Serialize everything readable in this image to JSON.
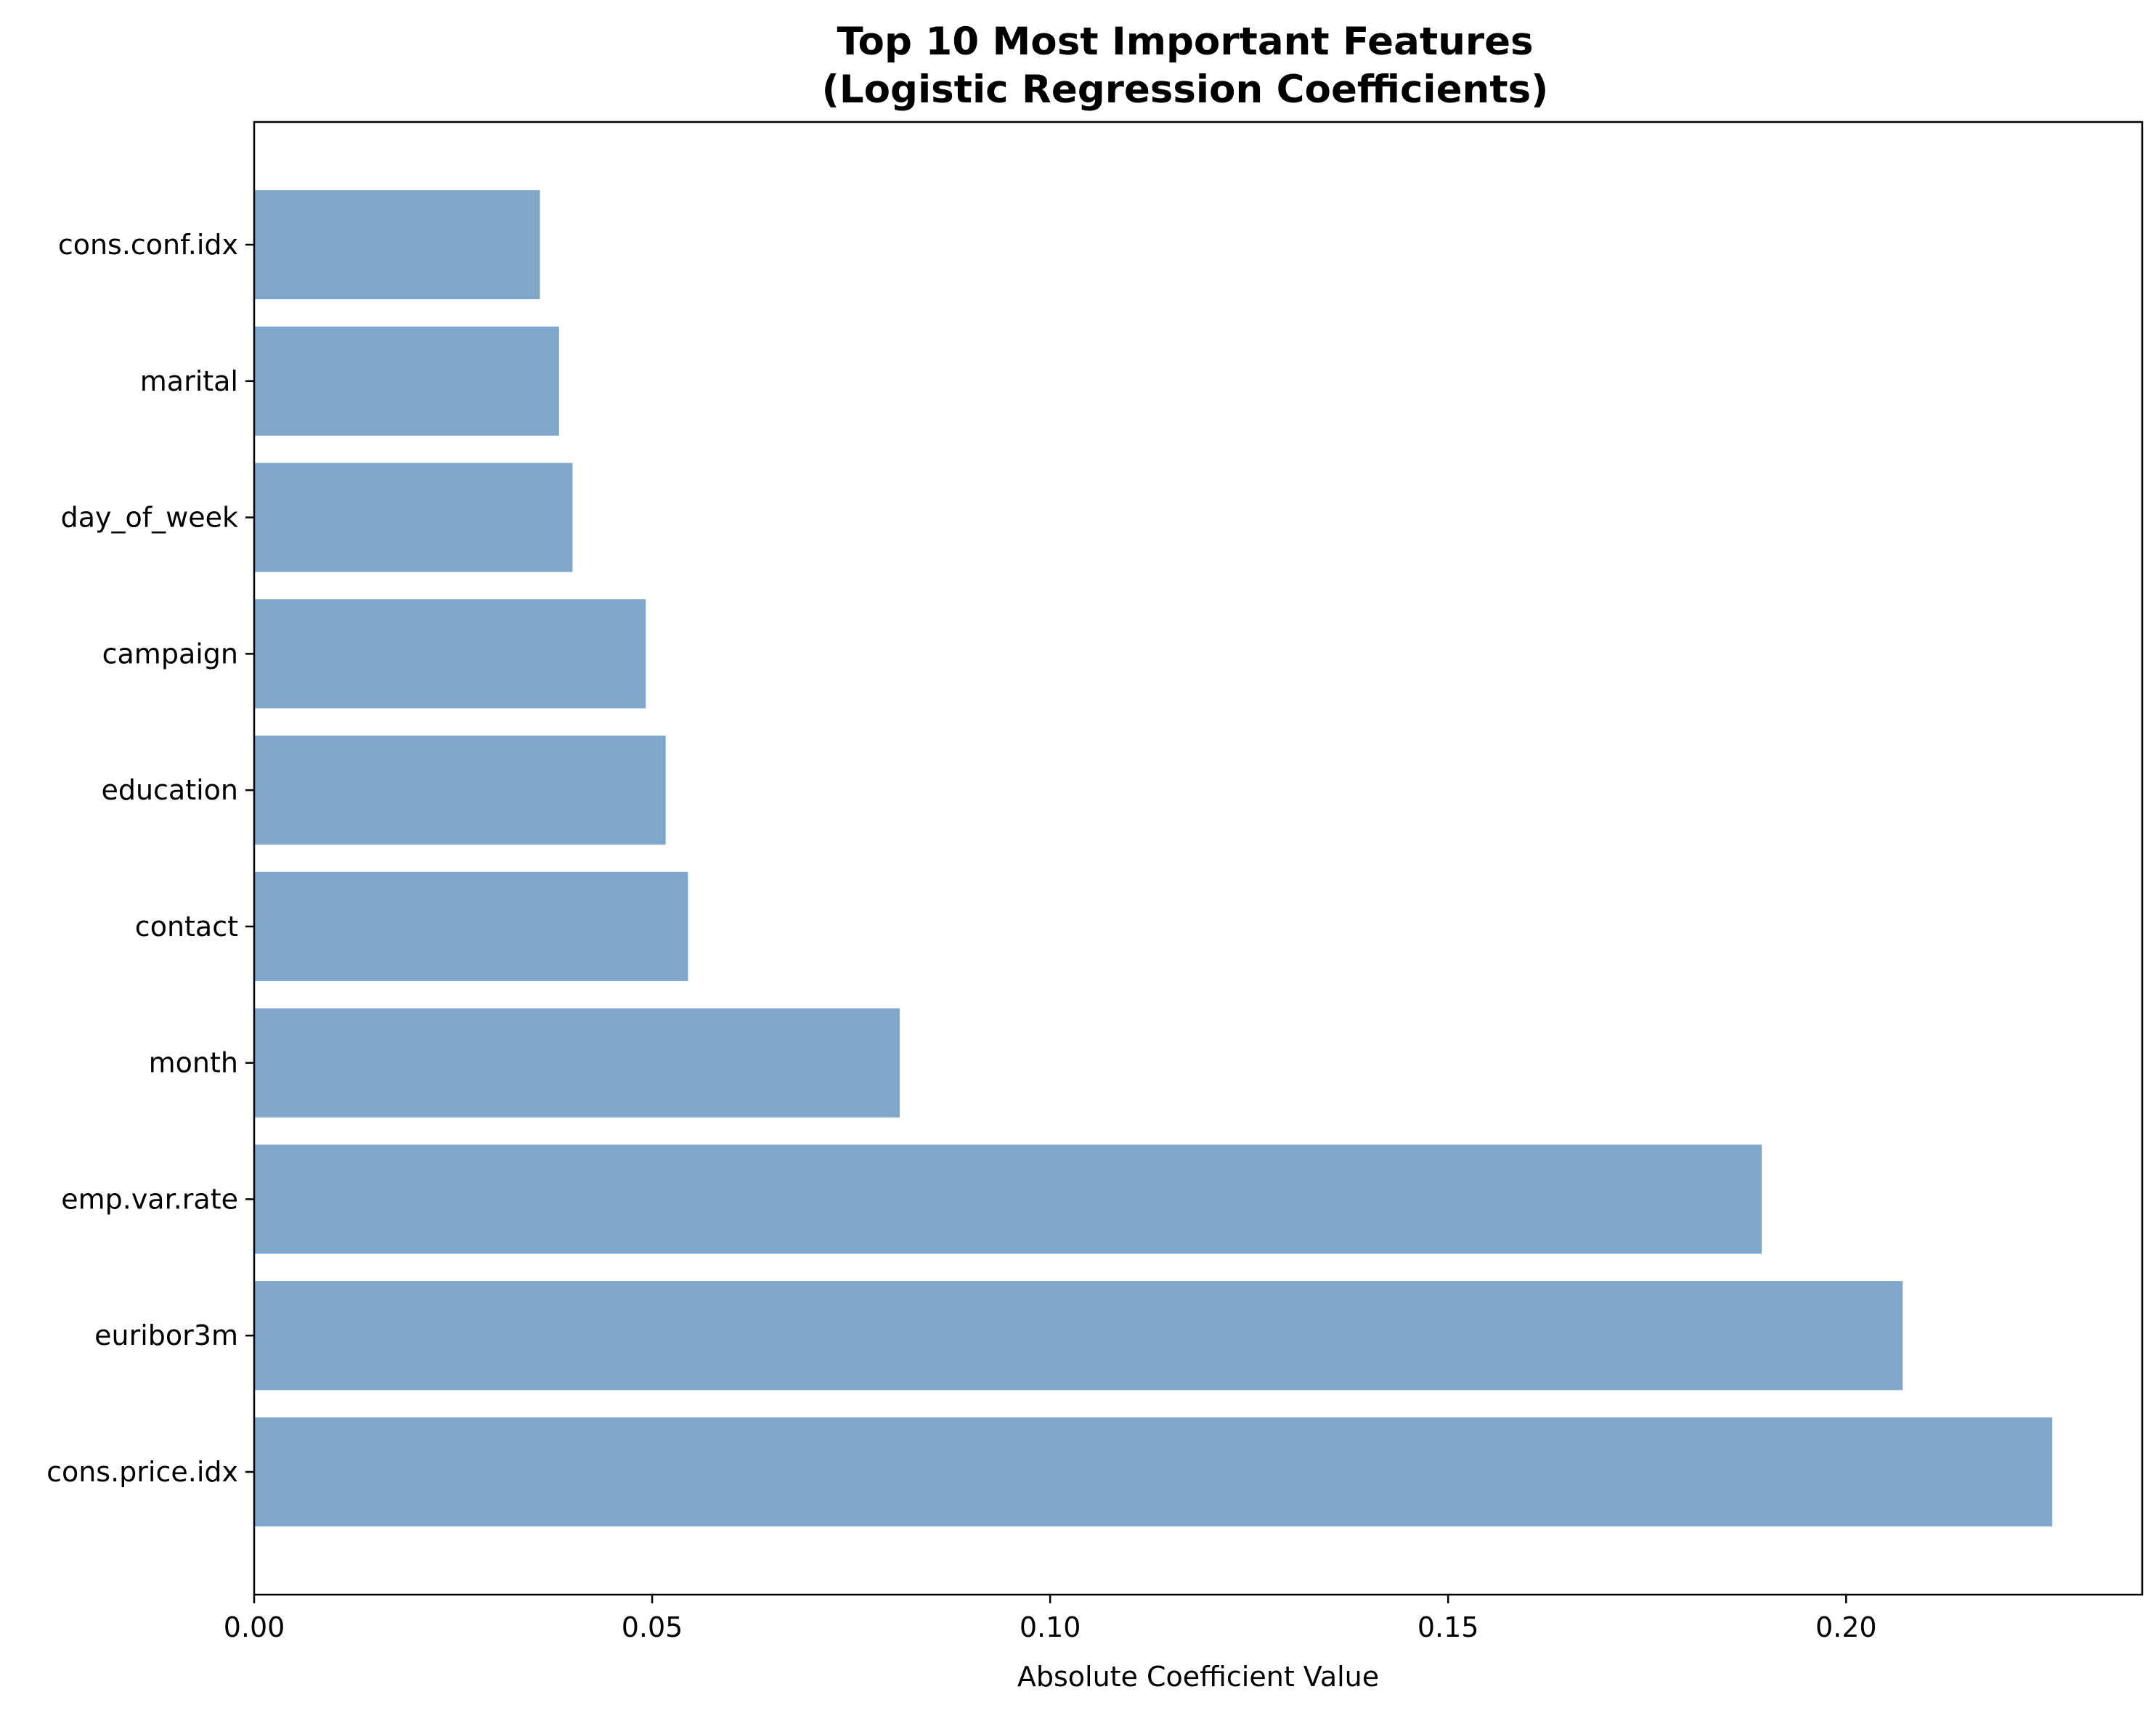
{
  "chart_data": {
    "type": "bar",
    "orientation": "horizontal",
    "title": "Top 10 Most Important Features",
    "subtitle": "(Logistic Regression Coefficients)",
    "xlabel": "Absolute Coefficient Value",
    "ylabel": "",
    "categories": [
      "cons.price.idx",
      "euribor3m",
      "emp.var.rate",
      "month",
      "contact",
      "education",
      "campaign",
      "day_of_week",
      "marital",
      "cons.conf.idx"
    ],
    "values": [
      0.2259,
      0.2071,
      0.1894,
      0.0811,
      0.0545,
      0.0517,
      0.0492,
      0.04,
      0.0383,
      0.0359
    ],
    "xlim": [
      0,
      0.2372
    ],
    "xticks": [
      0.0,
      0.05,
      0.1,
      0.15,
      0.2
    ],
    "xtick_labels": [
      "0.00",
      "0.05",
      "0.10",
      "0.15",
      "0.20"
    ],
    "bar_color": "#7ea7cb",
    "grid": false,
    "legend": "none"
  }
}
